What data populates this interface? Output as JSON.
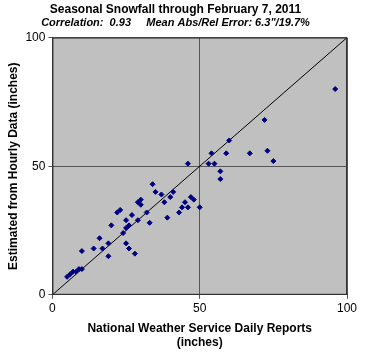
{
  "chart_data": {
    "type": "scatter",
    "title": "Seasonal Snowfall through February 7, 2011",
    "subtitle": "Correlation:  0.93     Mean Abs/Rel Error: 6.3\"/19.7%",
    "x_label": [
      "National Weather Service Daily Reports",
      "(inches)"
    ],
    "y_label": "Estimated from Hourly Data (inches)",
    "xlim": [
      0,
      100
    ],
    "xticks": [
      0,
      50,
      100
    ],
    "ylim": [
      0,
      100
    ],
    "yticks": [
      0,
      50,
      100
    ],
    "grid": true,
    "series": [
      {
        "type": "scatter",
        "color": "#000080",
        "marker": "diamond",
        "x": [
          5,
          6,
          7,
          8,
          9,
          10,
          10,
          14,
          16,
          17,
          19,
          19,
          20,
          22,
          23,
          24,
          25,
          25,
          25,
          26,
          26,
          27,
          28,
          29,
          29,
          30,
          30,
          32,
          33,
          34,
          35,
          37,
          38,
          39,
          40,
          41,
          43,
          44,
          45,
          46,
          46,
          47,
          48,
          50,
          53,
          54,
          55,
          57,
          57,
          59,
          60,
          67,
          72,
          73,
          75,
          96
        ],
        "values": [
          7,
          8,
          9,
          9,
          10,
          10,
          17,
          18,
          22,
          18,
          15,
          20,
          27,
          32,
          33,
          24,
          29,
          26,
          20,
          18,
          27,
          31,
          16,
          29,
          36,
          37,
          35,
          32,
          28,
          43,
          40,
          39,
          36,
          30,
          38,
          40,
          32,
          34,
          36,
          34,
          51,
          38,
          37,
          34,
          51,
          55,
          51,
          48,
          45,
          55,
          60,
          55,
          68,
          56,
          52,
          80
        ]
      },
      {
        "type": "line",
        "color": "#000000",
        "line_style": "solid",
        "x": [
          0,
          100
        ],
        "values": [
          0,
          100
        ]
      }
    ]
  }
}
